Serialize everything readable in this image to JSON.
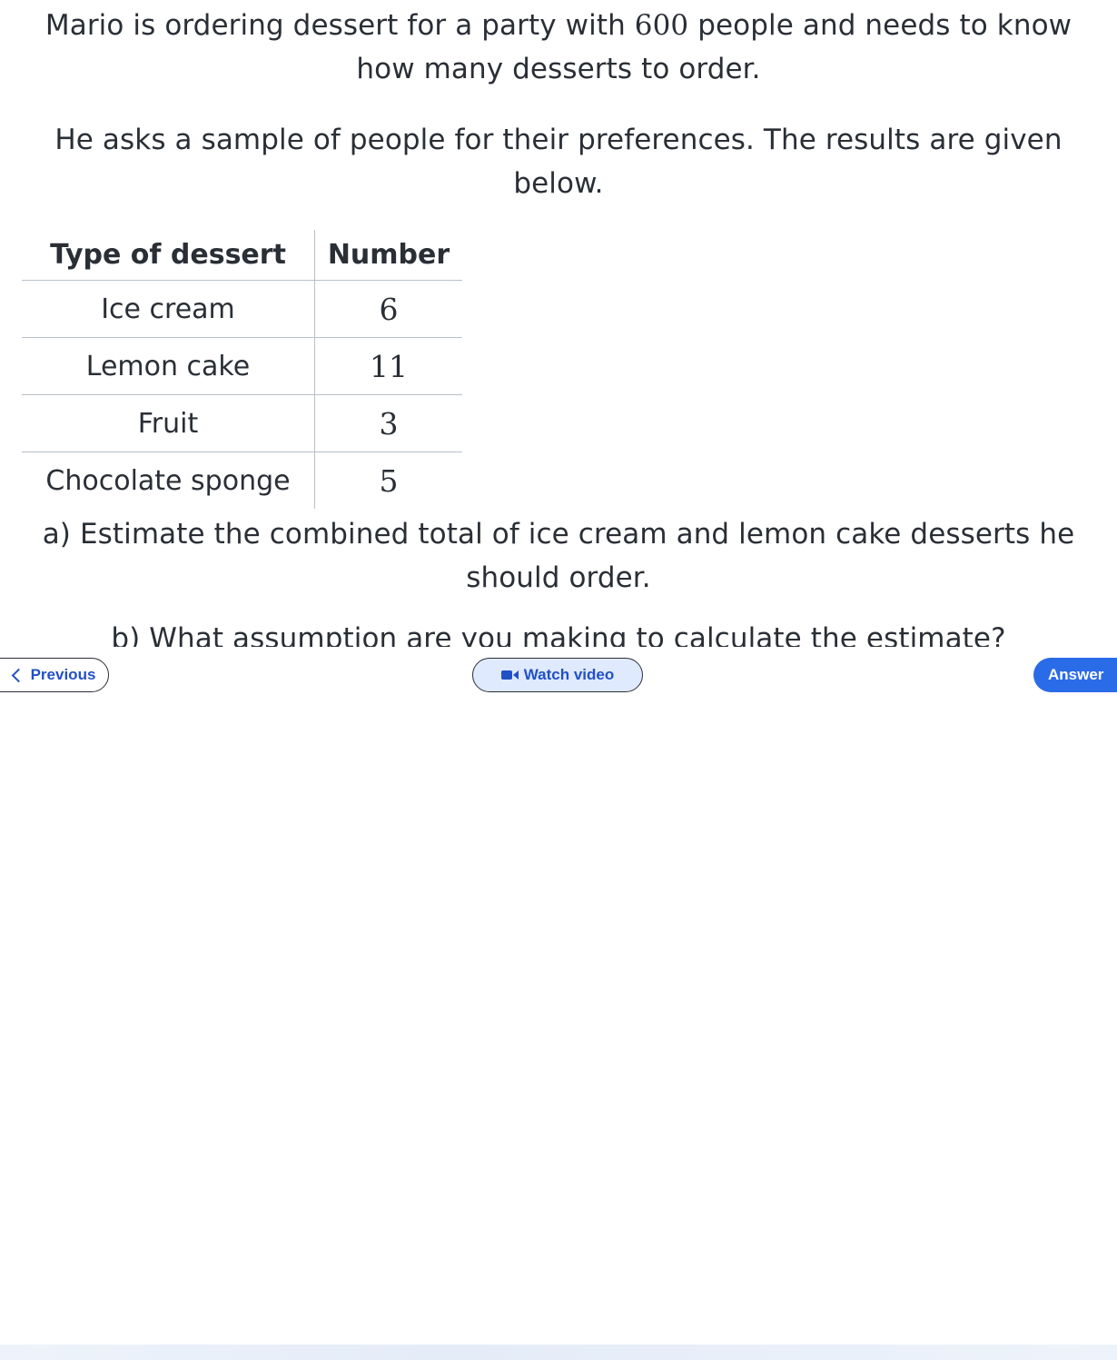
{
  "question": {
    "intro_before": "Mario is ordering dessert for a party with ",
    "intro_number": "600",
    "intro_after": " people and needs to know how many desserts to order.",
    "sample_text": "He asks a sample of people for their preferences. The results are given below.",
    "part_a": "a) Estimate the combined total of ice cream and lemon cake desserts he should order.",
    "part_b": "b) What assumption are you making to calculate the estimate?"
  },
  "table": {
    "headers": [
      "Type of dessert",
      "Number"
    ],
    "rows": [
      {
        "type": "Ice cream",
        "number": "6"
      },
      {
        "type": "Lemon cake",
        "number": "11"
      },
      {
        "type": "Fruit",
        "number": "3"
      },
      {
        "type": "Chocolate sponge",
        "number": "5"
      }
    ]
  },
  "nav": {
    "previous_label": "Previous",
    "previous_icon": "chevron-left-icon",
    "video_label": "Watch video",
    "video_icon": "video-camera-icon",
    "answer_label": "Answer"
  },
  "colors": {
    "accent": "#2a6be8",
    "link": "#2250c7",
    "video_bg": "#dfeaff"
  }
}
